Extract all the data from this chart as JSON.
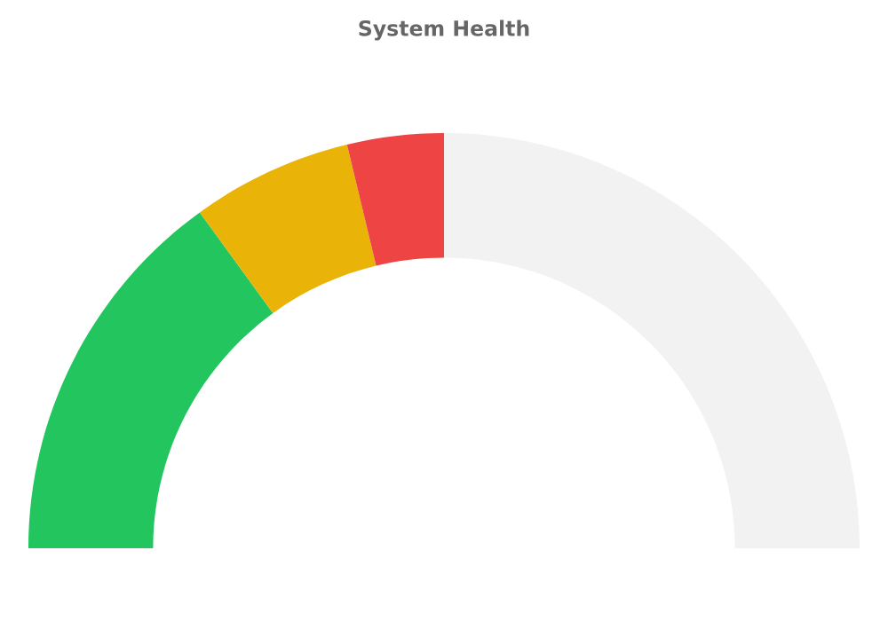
{
  "chart_data": {
    "type": "donut",
    "title": "System Health",
    "categories": [
      null,
      null,
      null,
      null
    ],
    "values": [
      30,
      12.5,
      7.5,
      50
    ],
    "colors": [
      "#22c55e",
      "#eab308",
      "#ef4444",
      "#f2f2f2"
    ]
  }
}
